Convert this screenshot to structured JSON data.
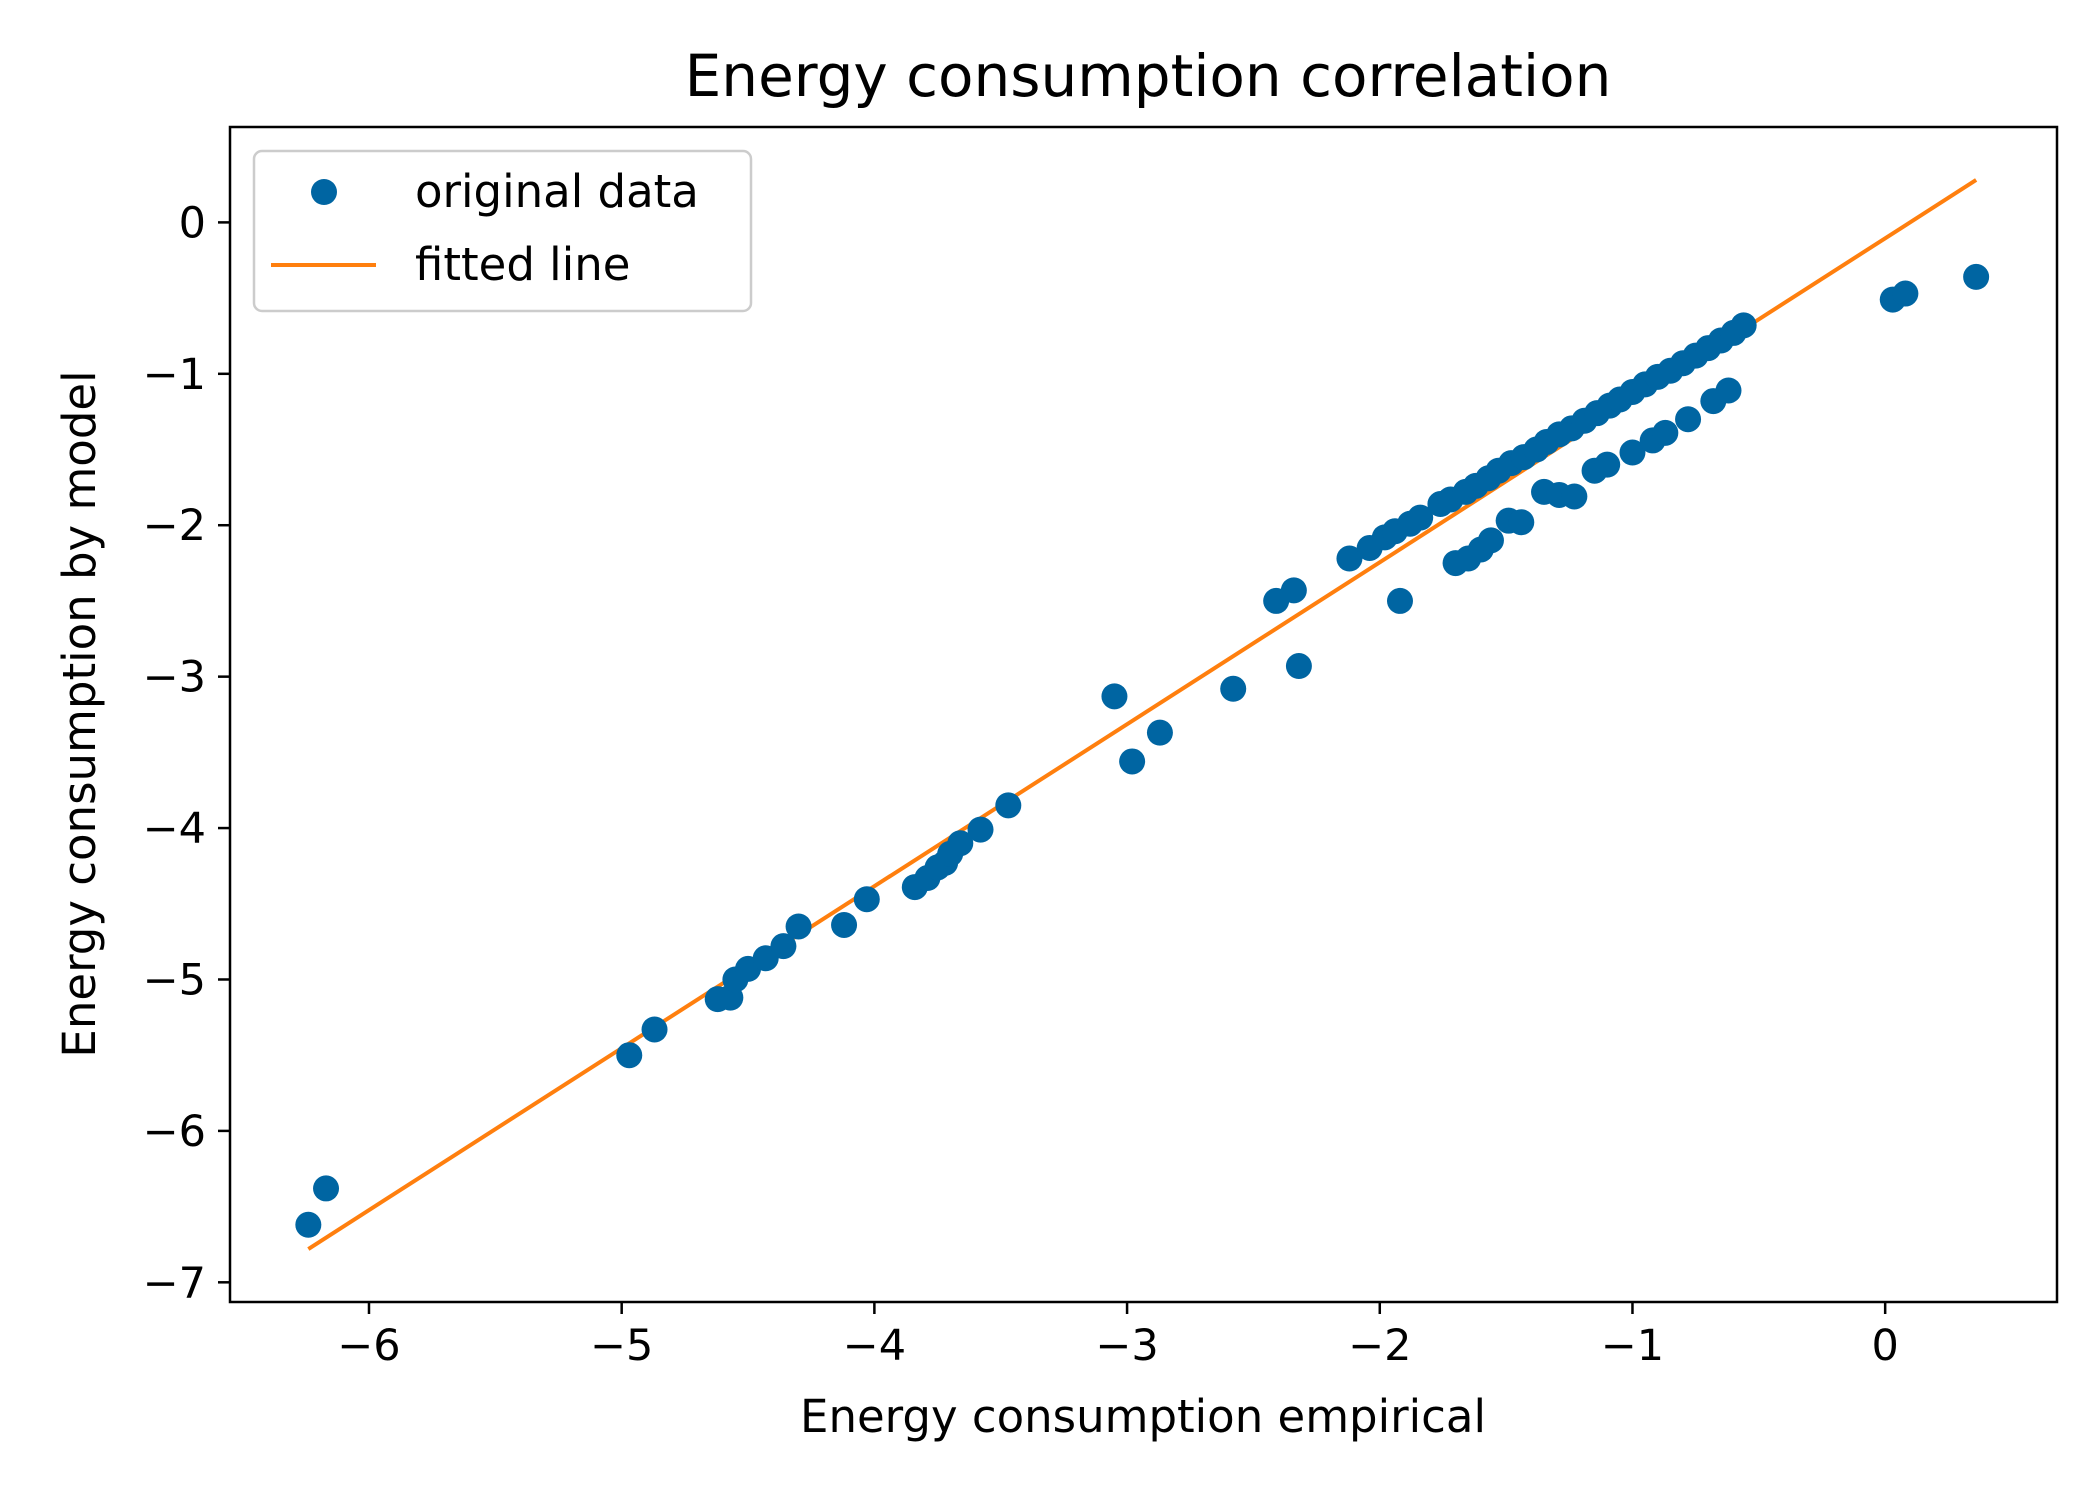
{
  "chart_data": {
    "type": "scatter",
    "title": "Energy consumption correlation",
    "xlabel": "Energy consumption empirical",
    "ylabel": "Energy consumption by model",
    "xlim": [
      -6.55,
      0.68
    ],
    "ylim": [
      -7.13,
      0.63
    ],
    "xticks": [
      -6,
      -5,
      -4,
      -3,
      -2,
      -1,
      0
    ],
    "yticks": [
      -7,
      -6,
      -5,
      -4,
      -3,
      -2,
      -1,
      0
    ],
    "xtick_labels": [
      "−6",
      "−5",
      "−4",
      "−3",
      "−2",
      "−1",
      "0"
    ],
    "ytick_labels": [
      "−7",
      "−6",
      "−5",
      "−4",
      "−3",
      "−2",
      "−1",
      "0"
    ],
    "grid": false,
    "legend": {
      "placement": "top-left",
      "entries": [
        "original data",
        "fitted line"
      ]
    },
    "colors": {
      "points": "#0065a2",
      "line": "#ff7f0e",
      "axes": "#000000",
      "legend_border": "#cccccc"
    },
    "series": [
      {
        "name": "original data",
        "kind": "points",
        "points": [
          [
            -6.24,
            -6.62
          ],
          [
            -6.17,
            -6.38
          ],
          [
            -4.97,
            -5.5
          ],
          [
            -4.87,
            -5.33
          ],
          [
            -4.62,
            -5.13
          ],
          [
            -4.57,
            -5.12
          ],
          [
            -4.55,
            -5.0
          ],
          [
            -4.5,
            -4.93
          ],
          [
            -4.43,
            -4.86
          ],
          [
            -4.36,
            -4.78
          ],
          [
            -4.3,
            -4.65
          ],
          [
            -4.12,
            -4.64
          ],
          [
            -4.03,
            -4.47
          ],
          [
            -3.84,
            -4.39
          ],
          [
            -3.79,
            -4.33
          ],
          [
            -3.75,
            -4.26
          ],
          [
            -3.72,
            -4.23
          ],
          [
            -3.7,
            -4.17
          ],
          [
            -3.66,
            -4.1
          ],
          [
            -3.58,
            -4.01
          ],
          [
            -3.47,
            -3.85
          ],
          [
            -3.05,
            -3.13
          ],
          [
            -2.98,
            -3.56
          ],
          [
            -2.87,
            -3.37
          ],
          [
            -2.58,
            -3.08
          ],
          [
            -2.41,
            -2.5
          ],
          [
            -2.34,
            -2.43
          ],
          [
            -2.32,
            -2.93
          ],
          [
            -2.12,
            -2.22
          ],
          [
            -2.04,
            -2.15
          ],
          [
            -1.98,
            -2.08
          ],
          [
            -1.94,
            -2.04
          ],
          [
            -1.88,
            -1.99
          ],
          [
            -1.84,
            -1.95
          ],
          [
            -1.76,
            -1.86
          ],
          [
            -1.72,
            -1.83
          ],
          [
            -1.66,
            -1.78
          ],
          [
            -1.62,
            -1.74
          ],
          [
            -1.57,
            -1.69
          ],
          [
            -1.53,
            -1.64
          ],
          [
            -1.48,
            -1.59
          ],
          [
            -1.43,
            -1.55
          ],
          [
            -1.38,
            -1.5
          ],
          [
            -1.34,
            -1.45
          ],
          [
            -1.29,
            -1.4
          ],
          [
            -1.24,
            -1.36
          ],
          [
            -1.19,
            -1.31
          ],
          [
            -1.14,
            -1.26
          ],
          [
            -1.09,
            -1.21
          ],
          [
            -1.05,
            -1.17
          ],
          [
            -1.0,
            -1.12
          ],
          [
            -0.95,
            -1.07
          ],
          [
            -0.9,
            -1.02
          ],
          [
            -0.85,
            -0.98
          ],
          [
            -0.8,
            -0.93
          ],
          [
            -0.75,
            -0.88
          ],
          [
            -0.7,
            -0.83
          ],
          [
            -0.65,
            -0.78
          ],
          [
            -0.6,
            -0.73
          ],
          [
            -0.56,
            -0.68
          ],
          [
            -1.92,
            -2.5
          ],
          [
            -1.7,
            -2.25
          ],
          [
            -1.65,
            -2.22
          ],
          [
            -1.6,
            -2.16
          ],
          [
            -1.56,
            -2.1
          ],
          [
            -1.49,
            -1.97
          ],
          [
            -1.44,
            -1.98
          ],
          [
            -1.35,
            -1.78
          ],
          [
            -1.29,
            -1.8
          ],
          [
            -1.23,
            -1.81
          ],
          [
            -1.15,
            -1.64
          ],
          [
            -1.1,
            -1.6
          ],
          [
            -1.0,
            -1.52
          ],
          [
            -0.92,
            -1.44
          ],
          [
            -0.87,
            -1.39
          ],
          [
            -0.78,
            -1.3
          ],
          [
            -0.68,
            -1.18
          ],
          [
            -0.62,
            -1.11
          ],
          [
            0.03,
            -0.51
          ],
          [
            0.08,
            -0.47
          ],
          [
            0.36,
            -0.36
          ]
        ]
      },
      {
        "name": "fitted line",
        "kind": "line",
        "points": [
          [
            -6.24,
            -6.78
          ],
          [
            0.36,
            0.28
          ]
        ]
      }
    ]
  }
}
